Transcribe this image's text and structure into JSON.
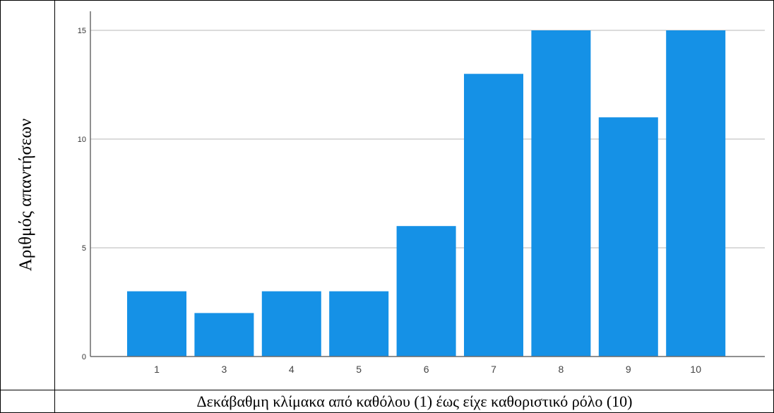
{
  "chart_data": {
    "type": "bar",
    "categories": [
      "1",
      "3",
      "4",
      "5",
      "6",
      "7",
      "8",
      "9",
      "10"
    ],
    "values": [
      3,
      2,
      3,
      3,
      6,
      13,
      15,
      11,
      15
    ],
    "title": "",
    "xlabel": "Δεκάβαθμη κλίμακα από καθόλου (1) έως είχε καθοριστικό ρόλο (10)",
    "ylabel": "Αριθμός απαντήσεων",
    "ylim": [
      0,
      15
    ],
    "yticks": [
      0,
      5,
      10,
      15
    ],
    "grid": true,
    "bar_color": "#1591e6",
    "grid_color": "#cfcfcf",
    "axis_color": "#6b6b6b"
  }
}
